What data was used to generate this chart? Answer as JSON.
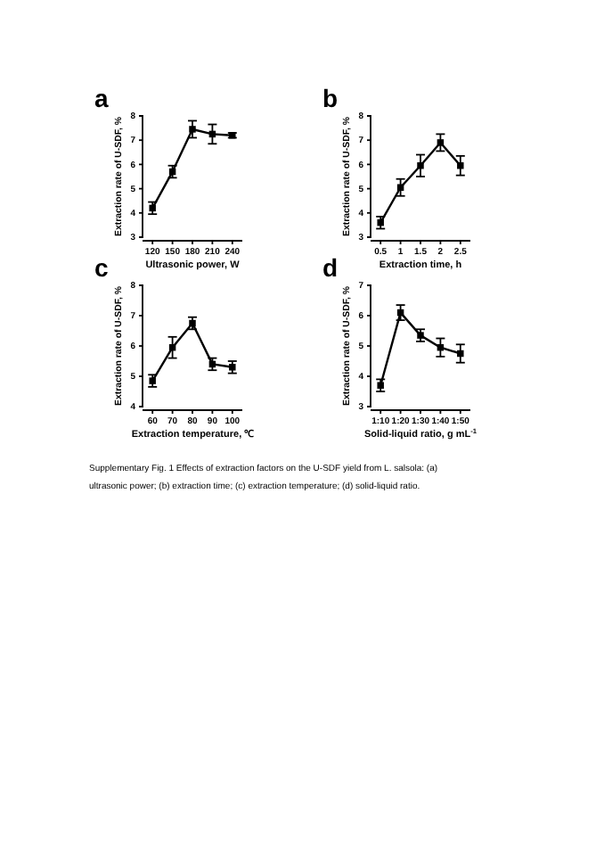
{
  "chart_data": [
    {
      "type": "line",
      "annotations": [
        "a"
      ],
      "xlabel": "Ultrasonic power, W",
      "ylabel": "Extraction rate of U-SDF, %",
      "categories": [
        "120",
        "150",
        "180",
        "210",
        "240"
      ],
      "values": [
        4.2,
        5.7,
        7.45,
        7.25,
        7.2
      ],
      "errors": [
        0.25,
        0.25,
        0.35,
        0.4,
        0.1
      ],
      "color": "#000000",
      "ylim": [
        3,
        8
      ],
      "yticks": [
        3,
        4,
        5,
        6,
        7,
        8
      ],
      "marker": "square",
      "line_style": "solid",
      "grid": false
    },
    {
      "type": "line",
      "annotations": [
        "b"
      ],
      "xlabel": "Extraction time, h",
      "ylabel": "Extraction rate of U-SDF, %",
      "categories": [
        "0.5",
        "1",
        "1.5",
        "2",
        "2.5"
      ],
      "values": [
        3.6,
        5.05,
        5.95,
        6.9,
        5.95
      ],
      "errors": [
        0.25,
        0.35,
        0.45,
        0.35,
        0.4
      ],
      "color": "#000000",
      "ylim": [
        3,
        8
      ],
      "yticks": [
        3,
        4,
        5,
        6,
        7,
        8
      ],
      "marker": "square",
      "line_style": "solid",
      "grid": false
    },
    {
      "type": "line",
      "annotations": [
        "c"
      ],
      "xlabel": "Extraction temperature, ℃",
      "ylabel": "Extraction rate of U-SDF, %",
      "categories": [
        "60",
        "70",
        "80",
        "90",
        "100"
      ],
      "values": [
        4.85,
        5.95,
        6.75,
        5.4,
        5.3
      ],
      "errors": [
        0.2,
        0.35,
        0.2,
        0.2,
        0.2
      ],
      "color": "#000000",
      "ylim": [
        4,
        8
      ],
      "yticks": [
        4,
        5,
        6,
        7,
        8
      ],
      "marker": "square",
      "line_style": "solid",
      "grid": false
    },
    {
      "type": "line",
      "annotations": [
        "d",
        "Supplementary Fig. 1 Effects of extraction factors on the U-SDF yield from L. salsola: (a) ultrasonic power; (b) extraction time; (c) extraction temperature; (d) solid-liquid ratio."
      ],
      "xlabel": "Solid-liquid ratio, g mL$^{-1}$",
      "ylabel": "Extraction rate of U-SDF, %",
      "categories": [
        "1:10",
        "1:20",
        "1:30",
        "1:40",
        "1:50"
      ],
      "values": [
        3.7,
        6.1,
        5.35,
        4.95,
        4.75
      ],
      "errors": [
        0.2,
        0.25,
        0.2,
        0.3,
        0.3
      ],
      "color": "#000000",
      "ylim": [
        3,
        7
      ],
      "yticks": [
        3,
        4,
        5,
        6,
        7
      ],
      "marker": "square",
      "line_style": "solid",
      "grid": false
    }
  ]
}
